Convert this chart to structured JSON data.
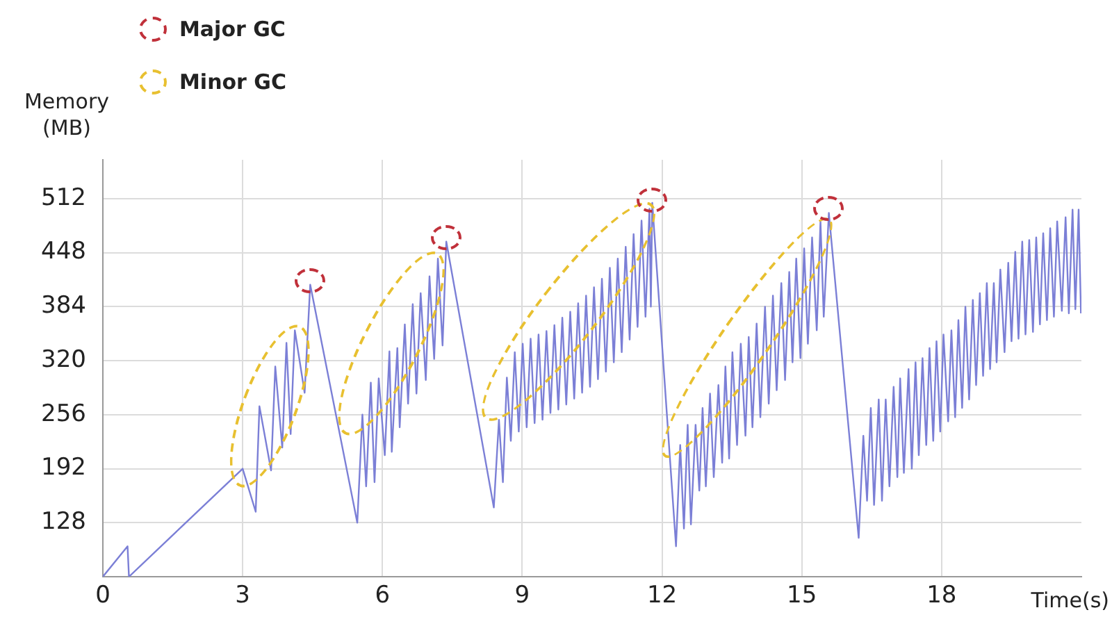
{
  "chart_data": {
    "type": "line",
    "xlabel": "Time(s)",
    "ylabel": "Memory\n(MB)",
    "annotations": [
      "Major GC",
      "Minor GC"
    ],
    "xlim": [
      0,
      21
    ],
    "xticks": [
      0,
      3,
      6,
      9,
      12,
      15,
      18
    ],
    "ylim": [
      64,
      558
    ],
    "yticks": [
      {
        "value": 64,
        "label": null
      },
      128,
      192,
      256,
      320,
      384,
      448,
      512
    ],
    "grid": true,
    "marker": "none",
    "line_style": "solid",
    "series": [
      {
        "color": "#7b7fd6",
        "x": [
          0,
          0.53,
          0.56,
          3.0,
          3.28,
          3.36,
          3.61,
          3.7,
          3.85,
          3.94,
          4.03,
          4.12,
          4.33,
          4.45,
          5.46,
          5.57,
          5.65,
          5.75,
          5.83,
          5.92,
          6.05,
          6.15,
          6.2,
          6.32,
          6.37,
          6.48,
          6.55,
          6.65,
          6.73,
          6.82,
          6.93,
          7.01,
          7.11,
          7.19,
          7.29,
          7.37,
          8.39,
          8.5,
          8.585,
          8.67,
          8.755,
          8.84,
          8.925,
          9.01,
          9.095,
          9.18,
          9.265,
          9.35,
          9.435,
          9.52,
          9.605,
          9.69,
          9.775,
          9.86,
          9.945,
          10.03,
          10.115,
          10.2,
          10.285,
          10.37,
          10.455,
          10.54,
          10.625,
          10.71,
          10.795,
          10.88,
          10.965,
          11.05,
          11.135,
          11.22,
          11.305,
          11.39,
          11.475,
          11.56,
          11.645,
          11.73,
          11.76,
          11.79,
          12.3,
          12.39,
          12.47,
          12.55,
          12.62,
          12.72,
          12.8,
          12.87,
          12.94,
          13.03,
          13.11,
          13.21,
          13.29,
          13.36,
          13.44,
          13.51,
          13.61,
          13.69,
          13.79,
          13.86,
          13.94,
          14.03,
          14.11,
          14.21,
          14.29,
          14.38,
          14.46,
          14.56,
          14.64,
          14.73,
          14.8,
          14.88,
          14.97,
          15.05,
          15.13,
          15.22,
          15.32,
          15.4,
          15.47,
          15.58,
          16.22,
          16.32,
          16.4,
          16.48,
          16.55,
          16.65,
          16.72,
          16.8,
          16.88,
          16.97,
          17.05,
          17.11,
          17.19,
          17.29,
          17.36,
          17.44,
          17.51,
          17.59,
          17.67,
          17.74,
          17.82,
          17.89,
          17.97,
          18.04,
          18.14,
          18.21,
          18.29,
          18.36,
          18.44,
          18.51,
          18.59,
          18.67,
          18.74,
          18.82,
          18.89,
          18.97,
          19.04,
          19.12,
          19.18,
          19.26,
          19.35,
          19.43,
          19.5,
          19.58,
          19.65,
          19.73,
          19.8,
          19.88,
          19.96,
          20.03,
          20.11,
          20.18,
          20.26,
          20.33,
          20.41,
          20.48,
          20.58,
          20.66,
          20.73,
          20.81,
          20.87,
          20.94,
          20.99
        ],
        "values": [
          64,
          100,
          64,
          192,
          141,
          266,
          190,
          313,
          217,
          341,
          233,
          356,
          282,
          410,
          128,
          256,
          171,
          294,
          176,
          299,
          208,
          331,
          212,
          335,
          241,
          363,
          269,
          387,
          281,
          400,
          297,
          420,
          322,
          441,
          338,
          461,
          146,
          250,
          176,
          300,
          225,
          330,
          236,
          340,
          241,
          346,
          246,
          351,
          250,
          355,
          258,
          362,
          262,
          371,
          268,
          378,
          275,
          388,
          282,
          397,
          289,
          407,
          298,
          417,
          307,
          430,
          318,
          441,
          330,
          455,
          345,
          470,
          360,
          486,
          372,
          500,
          384,
          507,
          100,
          220,
          121,
          244,
          126,
          244,
          166,
          264,
          171,
          281,
          182,
          291,
          199,
          313,
          204,
          330,
          220,
          340,
          231,
          348,
          241,
          364,
          253,
          384,
          269,
          397,
          285,
          412,
          297,
          425,
          318,
          441,
          323,
          453,
          340,
          466,
          356,
          485,
          372,
          495,
          110,
          231,
          154,
          264,
          149,
          274,
          154,
          274,
          171,
          289,
          182,
          299,
          187,
          310,
          192,
          318,
          208,
          323,
          220,
          335,
          225,
          343,
          236,
          351,
          248,
          356,
          253,
          368,
          264,
          384,
          274,
          392,
          291,
          400,
          302,
          412,
          310,
          412,
          318,
          428,
          330,
          436,
          343,
          449,
          346,
          461,
          351,
          463,
          354,
          466,
          363,
          471,
          368,
          477,
          372,
          485,
          379,
          490,
          376,
          499,
          381,
          499,
          376
        ]
      }
    ]
  }
}
